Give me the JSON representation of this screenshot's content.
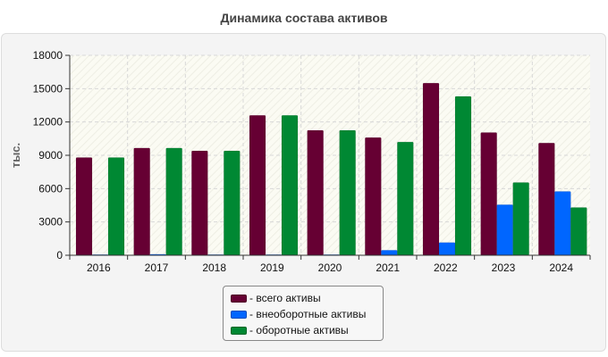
{
  "chart_data": {
    "type": "bar",
    "title": "Динамика состава активов",
    "ylabel": "тыс.",
    "xlabel": "",
    "ylim": [
      0,
      18000
    ],
    "yticks": [
      0,
      3000,
      6000,
      9000,
      12000,
      15000,
      18000
    ],
    "categories": [
      "2016",
      "2017",
      "2018",
      "2019",
      "2020",
      "2021",
      "2022",
      "2023",
      "2024"
    ],
    "series": [
      {
        "name": "- всего активы",
        "color": "#660033",
        "values": [
          8800,
          9650,
          9400,
          12600,
          11250,
          10600,
          15500,
          11050,
          10100
        ]
      },
      {
        "name": "- внеоборотные активы",
        "color": "#0066ff",
        "values": [
          60,
          90,
          60,
          60,
          60,
          450,
          1150,
          4550,
          5750
        ]
      },
      {
        "name": "- оборотные активы",
        "color": "#008833",
        "values": [
          8800,
          9650,
          9400,
          12600,
          11250,
          10200,
          14300,
          6550,
          4300
        ]
      }
    ],
    "grid": true,
    "legend_position": "bottom-center"
  }
}
